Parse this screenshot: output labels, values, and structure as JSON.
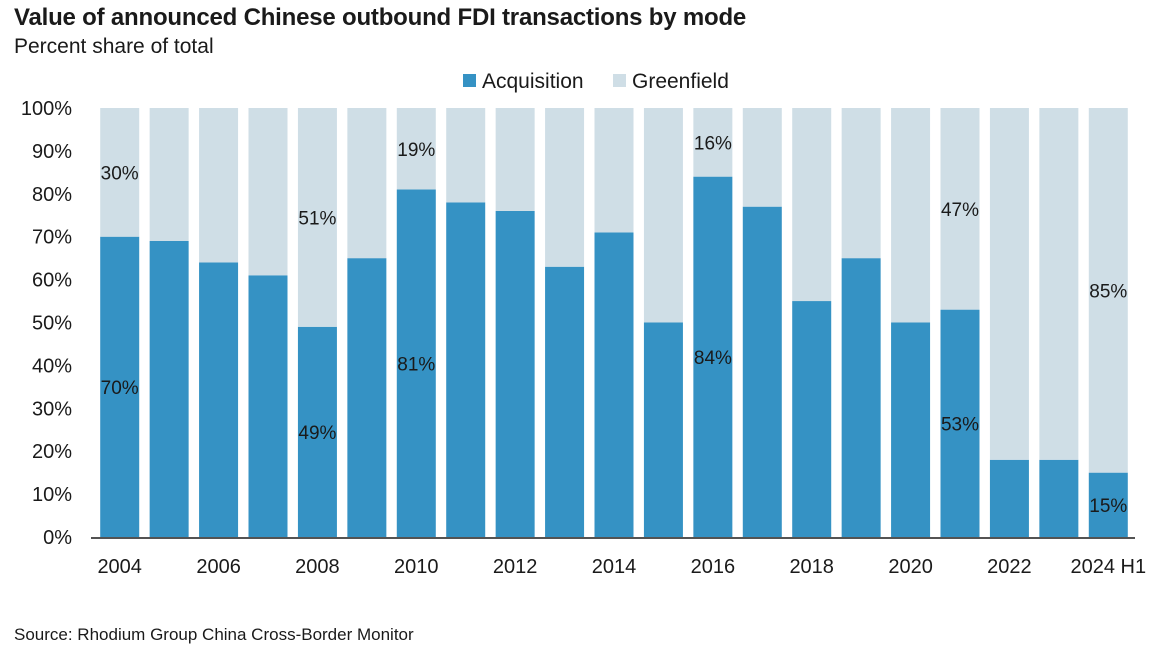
{
  "title": "Value of announced Chinese outbound FDI transactions by mode",
  "subtitle": "Percent share of total",
  "source": "Source: Rhodium Group China Cross-Border Monitor",
  "colors": {
    "acquisition": "#3592c4",
    "greenfield": "#cfdee6"
  },
  "chart_data": {
    "type": "bar",
    "stacked": true,
    "categories": [
      "2004",
      "2005",
      "2006",
      "2007",
      "2008",
      "2009",
      "2010",
      "2011",
      "2012",
      "2013",
      "2014",
      "2015",
      "2016",
      "2017",
      "2018",
      "2019",
      "2020",
      "2021",
      "2022",
      "2023",
      "2024 H1"
    ],
    "x_tick_labels": [
      "2004",
      "",
      "2006",
      "",
      "2008",
      "",
      "2010",
      "",
      "2012",
      "",
      "2014",
      "",
      "2016",
      "",
      "2018",
      "",
      "2020",
      "",
      "2022",
      "",
      "2024 H1"
    ],
    "series": [
      {
        "name": "Acquisition",
        "values": [
          70,
          69,
          64,
          61,
          49,
          65,
          81,
          78,
          76,
          63,
          71,
          50,
          84,
          77,
          55,
          65,
          50,
          53,
          18,
          18,
          15
        ]
      },
      {
        "name": "Greenfield",
        "values": [
          30,
          31,
          36,
          39,
          51,
          35,
          19,
          22,
          24,
          37,
          29,
          50,
          16,
          23,
          45,
          35,
          50,
          47,
          82,
          82,
          85
        ]
      }
    ],
    "ylim": [
      0,
      100
    ],
    "y_ticks": [
      "0%",
      "10%",
      "20%",
      "30%",
      "40%",
      "50%",
      "60%",
      "70%",
      "80%",
      "90%",
      "100%"
    ],
    "legend_position": "top-center",
    "grid": false,
    "data_labels": [
      {
        "series": "Greenfield",
        "category": "2004",
        "text": "30%"
      },
      {
        "series": "Acquisition",
        "category": "2004",
        "text": "70%"
      },
      {
        "series": "Greenfield",
        "category": "2008",
        "text": "51%"
      },
      {
        "series": "Acquisition",
        "category": "2008",
        "text": "49%"
      },
      {
        "series": "Greenfield",
        "category": "2010",
        "text": "19%"
      },
      {
        "series": "Acquisition",
        "category": "2010",
        "text": "81%"
      },
      {
        "series": "Greenfield",
        "category": "2016",
        "text": "16%"
      },
      {
        "series": "Acquisition",
        "category": "2016",
        "text": "84%"
      },
      {
        "series": "Greenfield",
        "category": "2021",
        "text": "47%"
      },
      {
        "series": "Acquisition",
        "category": "2021",
        "text": "53%"
      },
      {
        "series": "Greenfield",
        "category": "2024 H1",
        "text": "85%"
      },
      {
        "series": "Acquisition",
        "category": "2024 H1",
        "text": "15%"
      }
    ]
  }
}
